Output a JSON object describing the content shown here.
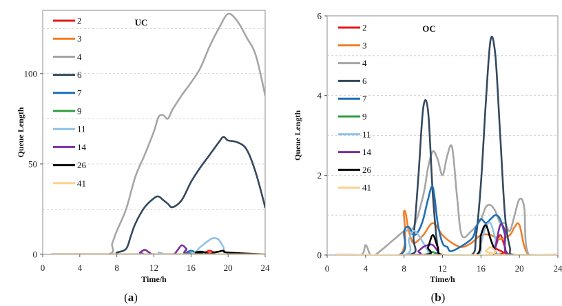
{
  "chart_data": [
    {
      "type": "line",
      "panel_label_open": "(",
      "panel_label_letter": "a",
      "panel_label_close": ")",
      "title": "UC",
      "xlabel": "Time/h",
      "ylabel": "Queue Length",
      "xlim": [
        0,
        24
      ],
      "ylim": [
        0,
        135
      ],
      "xticks": [
        0,
        4,
        8,
        12,
        16,
        20,
        24
      ],
      "yticks": [
        0,
        50,
        100
      ],
      "grid": "horizontal dashed",
      "legend_position": "top-left",
      "series": [
        {
          "name": "2",
          "color": "#e41a1c",
          "x": [
            1,
            17,
            17.5,
            18,
            18.5,
            19,
            24
          ],
          "y": [
            0,
            0,
            1,
            2,
            1,
            0,
            0
          ]
        },
        {
          "name": "3",
          "color": "#f07f2a",
          "x": [
            1,
            24
          ],
          "y": [
            0,
            0
          ]
        },
        {
          "name": "4",
          "color": "#a6a6a6",
          "x": [
            1,
            7,
            7.5,
            8,
            9,
            10,
            11,
            12,
            12.5,
            13,
            13.5,
            14,
            15,
            16,
            17,
            18,
            19,
            20,
            21,
            22,
            23,
            24
          ],
          "y": [
            0,
            0,
            6,
            13,
            25,
            43,
            55,
            68,
            76,
            77,
            75,
            80,
            88,
            95,
            103,
            115,
            125,
            133,
            129,
            120,
            110,
            88
          ]
        },
        {
          "name": "6",
          "color": "#34495e",
          "x": [
            1,
            7.5,
            8,
            9,
            9.5,
            10,
            11,
            12,
            12.5,
            13,
            13.5,
            14,
            15,
            16,
            17,
            18,
            19,
            19.5,
            20,
            21,
            22,
            23,
            24
          ],
          "y": [
            0,
            0,
            1,
            3,
            10,
            17,
            26,
            31,
            32,
            30,
            28,
            26,
            30,
            40,
            48,
            55,
            62,
            65,
            63,
            62,
            58,
            45,
            26
          ]
        },
        {
          "name": "7",
          "color": "#1f6fb5",
          "x": [
            1,
            15,
            15.5,
            16,
            16.5,
            17,
            24
          ],
          "y": [
            0,
            0,
            1,
            2,
            1,
            0,
            0
          ]
        },
        {
          "name": "9",
          "color": "#2e9e3e",
          "x": [
            1,
            24
          ],
          "y": [
            0,
            0
          ]
        },
        {
          "name": "11",
          "color": "#8fc2e6",
          "x": [
            1,
            12,
            12.5,
            13,
            13.5,
            16,
            17,
            18,
            18.5,
            19,
            19.5,
            20,
            24
          ],
          "y": [
            0,
            0,
            1,
            0,
            0,
            0,
            4,
            8,
            9,
            8,
            4,
            0,
            0
          ]
        },
        {
          "name": "14",
          "color": "#7a2fa0",
          "x": [
            1,
            10,
            10.5,
            11,
            11.5,
            12,
            14,
            14.5,
            15,
            15.5,
            16,
            24
          ],
          "y": [
            0,
            0,
            1,
            2.5,
            1,
            0,
            0,
            2,
            5,
            3,
            0,
            0
          ]
        },
        {
          "name": "26",
          "color": "#000000",
          "x": [
            1,
            16,
            16.5,
            17,
            17.5,
            18,
            18.5,
            19,
            19.5,
            20,
            24
          ],
          "y": [
            0,
            0,
            1,
            1.5,
            1,
            0,
            1,
            1.5,
            2,
            1,
            0
          ]
        },
        {
          "name": "41",
          "color": "#fbd38d",
          "x": [
            1,
            24
          ],
          "y": [
            0,
            0
          ]
        }
      ]
    },
    {
      "type": "line",
      "panel_label_open": "(",
      "panel_label_letter": "b",
      "panel_label_close": ")",
      "title": "OC",
      "xlabel": "Time/h",
      "ylabel": "Queue Length",
      "xlim": [
        0,
        24
      ],
      "ylim": [
        0,
        6
      ],
      "xticks": [
        0,
        4,
        8,
        12,
        16,
        20,
        24
      ],
      "yticks": [
        0,
        2,
        4,
        6
      ],
      "grid": "horizontal dashed",
      "legend_position": "top-left",
      "series": [
        {
          "name": "2",
          "color": "#e41a1c",
          "x": [
            1,
            17,
            17.5,
            18,
            18.5,
            19,
            24
          ],
          "y": [
            0,
            0,
            0.2,
            0.5,
            0.2,
            0,
            0
          ]
        },
        {
          "name": "3",
          "color": "#f07f2a",
          "x": [
            1,
            7.5,
            8,
            8.5,
            9,
            10,
            11,
            12,
            13,
            14,
            15,
            16,
            17,
            18,
            19,
            19.5,
            20,
            21,
            24
          ],
          "y": [
            0,
            0,
            1.1,
            0.6,
            0.3,
            0.5,
            0.8,
            0.5,
            0.3,
            0.2,
            0.3,
            0.5,
            0.5,
            0.4,
            0.5,
            0.7,
            0.75,
            0,
            0
          ]
        },
        {
          "name": "4",
          "color": "#a6a6a6",
          "x": [
            1,
            3.5,
            4,
            4.5,
            5,
            7,
            8,
            9,
            10,
            10.5,
            11,
            11.5,
            12,
            12.5,
            13,
            13.5,
            14,
            15,
            16,
            16.5,
            17,
            17.5,
            18,
            18.5,
            19,
            19.5,
            20,
            20.5,
            21,
            24
          ],
          "y": [
            0,
            0,
            0.25,
            0,
            0,
            0.4,
            0.6,
            0.7,
            1.5,
            2.2,
            2.6,
            2.4,
            2.0,
            2.5,
            2.7,
            1.5,
            0.5,
            0.6,
            0.9,
            1.2,
            1.25,
            1.1,
            0.8,
            0.8,
            0.6,
            1.0,
            1.4,
            1.2,
            0,
            0
          ]
        },
        {
          "name": "6",
          "color": "#34495e",
          "x": [
            1,
            8.5,
            9,
            9.5,
            10,
            10.5,
            11,
            11.5,
            12,
            15,
            15.5,
            16,
            16.5,
            17,
            17.5,
            18,
            18.5,
            19,
            19.5,
            24
          ],
          "y": [
            0,
            0,
            0.5,
            2.0,
            3.7,
            3.6,
            1.5,
            0.2,
            0,
            0,
            0.5,
            1.8,
            3.8,
            5.4,
            5.0,
            3.0,
            1.0,
            0.2,
            0,
            0
          ]
        },
        {
          "name": "7",
          "color": "#1f6fb5",
          "x": [
            1,
            7.5,
            8,
            8.5,
            9,
            9.5,
            10,
            10.5,
            11,
            11.5,
            12,
            12.5,
            13,
            15,
            15.5,
            16,
            16.5,
            17,
            17.5,
            18,
            18.5,
            19,
            24
          ],
          "y": [
            0,
            0,
            0.6,
            0.7,
            0.5,
            0.6,
            0.9,
            1.4,
            1.7,
            0.8,
            0.3,
            0.2,
            0.1,
            0.4,
            0.7,
            0.9,
            0.8,
            0.9,
            1.0,
            0.9,
            0.5,
            0,
            0
          ]
        },
        {
          "name": "9",
          "color": "#2e9e3e",
          "x": [
            1,
            10.5,
            11,
            11.5,
            24
          ],
          "y": [
            0,
            0,
            0.08,
            0,
            0
          ]
        },
        {
          "name": "11",
          "color": "#8fc2e6",
          "x": [
            1,
            8,
            8.5,
            9,
            9.5,
            10,
            10.5,
            11,
            15.5,
            16,
            16.5,
            17,
            17.5,
            18,
            24
          ],
          "y": [
            0,
            0,
            0.4,
            0.6,
            0.5,
            0.3,
            0.1,
            0,
            0,
            0.3,
            0.7,
            0.8,
            0.4,
            0,
            0
          ]
        },
        {
          "name": "14",
          "color": "#7a2fa0",
          "x": [
            1,
            9,
            9.5,
            10,
            10.5,
            11,
            11.5,
            12,
            17,
            17.5,
            18,
            18.5,
            19,
            24
          ],
          "y": [
            0,
            0,
            0.1,
            0.2,
            0.25,
            0.25,
            0.1,
            0,
            0,
            0.2,
            0.75,
            0.6,
            0,
            0
          ]
        },
        {
          "name": "26",
          "color": "#000000",
          "x": [
            1,
            10,
            10.5,
            11,
            11.5,
            12,
            15.5,
            16,
            16.5,
            17,
            17.5,
            18,
            24
          ],
          "y": [
            0,
            0,
            0.2,
            0.5,
            0.2,
            0,
            0,
            0.5,
            0.75,
            0.4,
            0.1,
            0,
            0
          ]
        },
        {
          "name": "41",
          "color": "#fbd38d",
          "x": [
            1,
            16,
            16.5,
            17,
            17.5,
            18,
            24
          ],
          "y": [
            0,
            0,
            0.1,
            0.2,
            0.1,
            0,
            0
          ]
        }
      ]
    }
  ]
}
